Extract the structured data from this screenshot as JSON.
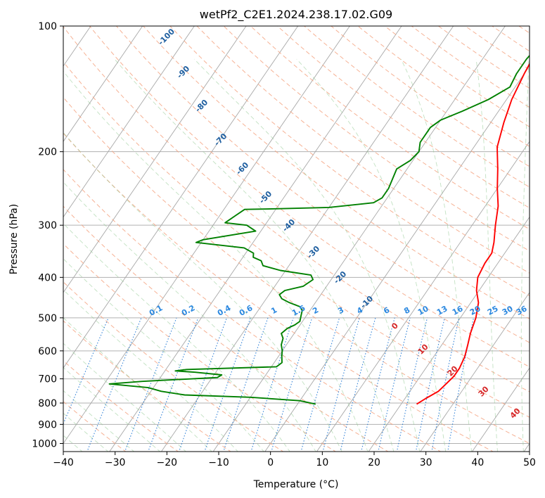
{
  "chart_data": {
    "type": "line",
    "title": "wetPf2_C2E1.2024.238.17.02.G09",
    "xlabel": "Temperature (°C)",
    "ylabel": "Pressure (hPa)",
    "xlim": [
      -40,
      50
    ],
    "ylim": [
      1050,
      100
    ],
    "y_scale": "log",
    "grid": true,
    "x_ticks": [
      "−40",
      "−30",
      "−20",
      "−10",
      "0",
      "10",
      "20",
      "30",
      "40",
      "50"
    ],
    "x_tick_values": [
      -40,
      -30,
      -20,
      -10,
      0,
      10,
      20,
      30,
      40,
      50
    ],
    "y_ticks": [
      "100",
      "200",
      "300",
      "400",
      "500",
      "600",
      "700",
      "800",
      "900",
      "1000"
    ],
    "y_tick_values": [
      100,
      200,
      300,
      400,
      500,
      600,
      700,
      800,
      900,
      1000
    ],
    "series": [
      {
        "color": "#ff0000",
        "points": [
          [
            23,
            805
          ],
          [
            24,
            780
          ],
          [
            25.5,
            750
          ],
          [
            26,
            720
          ],
          [
            26.5,
            690
          ],
          [
            26.5,
            660
          ],
          [
            26,
            620
          ],
          [
            25,
            580
          ],
          [
            24,
            545
          ],
          [
            23,
            500
          ],
          [
            21.5,
            460
          ],
          [
            19.5,
            430
          ],
          [
            18,
            400
          ],
          [
            17.5,
            370
          ],
          [
            17.5,
            350
          ],
          [
            16.5,
            330
          ],
          [
            14.5,
            300
          ],
          [
            12.5,
            270
          ],
          [
            10,
            245
          ],
          [
            7.5,
            220
          ],
          [
            4.5,
            195
          ],
          [
            2.5,
            170
          ],
          [
            1,
            150
          ],
          [
            0,
            130
          ],
          [
            -0.5,
            118
          ],
          [
            0.5,
            110
          ],
          [
            2.5,
            102
          ],
          [
            3.5,
            98
          ]
        ]
      },
      {
        "color": "#008000",
        "points": [
          [
            3.5,
            805
          ],
          [
            0,
            790
          ],
          [
            -10,
            775
          ],
          [
            -23,
            765
          ],
          [
            -28,
            750
          ],
          [
            -31,
            735
          ],
          [
            -39,
            720
          ],
          [
            -33,
            710
          ],
          [
            -19,
            695
          ],
          [
            -18.5,
            685
          ],
          [
            -24,
            675
          ],
          [
            -28,
            670
          ],
          [
            -26,
            665
          ],
          [
            -9,
            655
          ],
          [
            -8.5,
            640
          ],
          [
            -9.5,
            615
          ],
          [
            -10,
            600
          ],
          [
            -11,
            580
          ],
          [
            -11.5,
            560
          ],
          [
            -12.5,
            545
          ],
          [
            -12,
            530
          ],
          [
            -11,
            520
          ],
          [
            -10.5,
            510
          ],
          [
            -11,
            495
          ],
          [
            -11.5,
            480
          ],
          [
            -12.5,
            470
          ],
          [
            -15,
            460
          ],
          [
            -17,
            450
          ],
          [
            -18,
            440
          ],
          [
            -17.5,
            430
          ],
          [
            -14.5,
            420
          ],
          [
            -13.5,
            405
          ],
          [
            -14.5,
            395
          ],
          [
            -21,
            385
          ],
          [
            -25,
            375
          ],
          [
            -26,
            365
          ],
          [
            -28,
            358
          ],
          [
            -28.5,
            350
          ],
          [
            -31,
            340
          ],
          [
            -41,
            330
          ],
          [
            -40,
            325
          ],
          [
            -31,
            310
          ],
          [
            -33.5,
            300
          ],
          [
            -38,
            296
          ],
          [
            -37,
            285
          ],
          [
            -36,
            275
          ],
          [
            -30,
            274
          ],
          [
            -20,
            272
          ],
          [
            -12,
            265
          ],
          [
            -11,
            258
          ],
          [
            -11,
            245
          ],
          [
            -11.5,
            232
          ],
          [
            -12,
            220
          ],
          [
            -10.5,
            210
          ],
          [
            -10,
            200
          ],
          [
            -11,
            190
          ],
          [
            -11,
            175
          ],
          [
            -10,
            168
          ],
          [
            -7,
            160
          ],
          [
            -3.5,
            150
          ],
          [
            -1,
            140
          ],
          [
            -1.5,
            130
          ],
          [
            -1.5,
            120
          ],
          [
            -1,
            112
          ],
          [
            0.5,
            107
          ],
          [
            2.5,
            101
          ]
        ]
      }
    ],
    "isotherms": {
      "start": -160,
      "end": 50,
      "step": 10
    },
    "dry_adiabats": {
      "labels": [
        "-100",
        "-90",
        "-80",
        "-70",
        "-60",
        "-50",
        "-40",
        "-30",
        "-20",
        "-10",
        "0",
        "10",
        "20",
        "30",
        "40"
      ]
    },
    "mixing_ratio": {
      "labels": [
        "0.1",
        "0.2",
        "0.4",
        "0.6",
        "1",
        "1.5",
        "2",
        "3",
        "4",
        "6",
        "8",
        "10",
        "13",
        "16",
        "20",
        "25",
        "30",
        "36"
      ],
      "values": [
        0.1,
        0.2,
        0.4,
        0.6,
        1,
        1.5,
        2,
        3,
        4,
        6,
        8,
        10,
        13,
        16,
        20,
        25,
        30,
        36
      ]
    }
  }
}
